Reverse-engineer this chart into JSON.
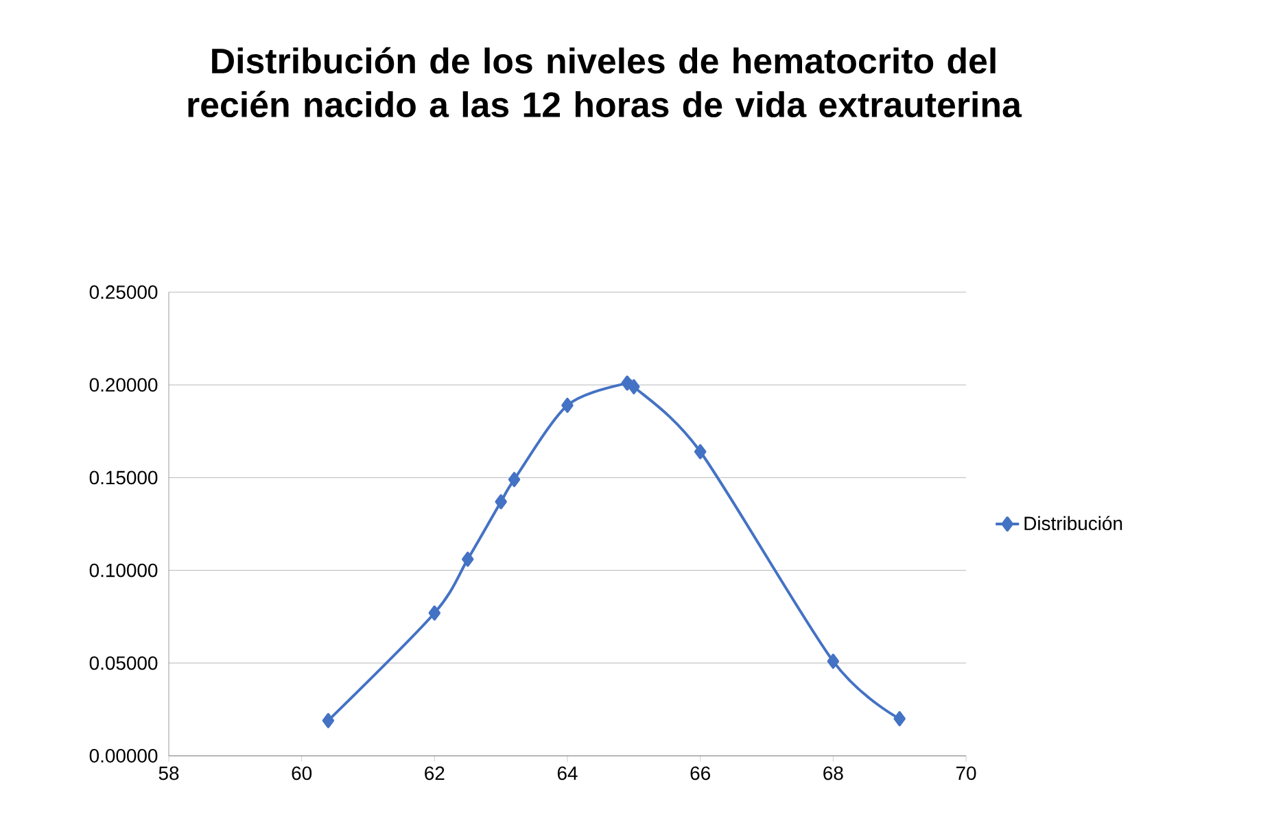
{
  "chart_data": {
    "type": "line",
    "title": "Distribución de los niveles de hematocrito del recién nacido a las 12 horas de vida extrauterina",
    "x": [
      60.4,
      62.0,
      62.5,
      63.0,
      63.2,
      64.0,
      64.9,
      65.0,
      66.0,
      68.0,
      69.0
    ],
    "series": [
      {
        "name": "Distribución",
        "color": "#4472c4",
        "values": [
          0.019,
          0.077,
          0.106,
          0.137,
          0.149,
          0.189,
          0.201,
          0.199,
          0.164,
          0.051,
          0.02
        ]
      }
    ],
    "xlim": [
      58,
      70
    ],
    "xticks": [
      58,
      60,
      62,
      64,
      66,
      68,
      70
    ],
    "ylim": [
      0,
      0.25
    ],
    "yticks": [
      {
        "value": 0,
        "label": "0.00000"
      },
      {
        "value": 0.05,
        "label": "0.05000"
      },
      {
        "value": 0.1,
        "label": "0.10000"
      },
      {
        "value": 0.15,
        "label": "0.15000"
      },
      {
        "value": 0.2,
        "label": "0.20000"
      },
      {
        "value": 0.25,
        "label": "0.25000"
      }
    ],
    "grid": "y",
    "legend": "right",
    "marker": "diamond",
    "line_style": "solid"
  }
}
